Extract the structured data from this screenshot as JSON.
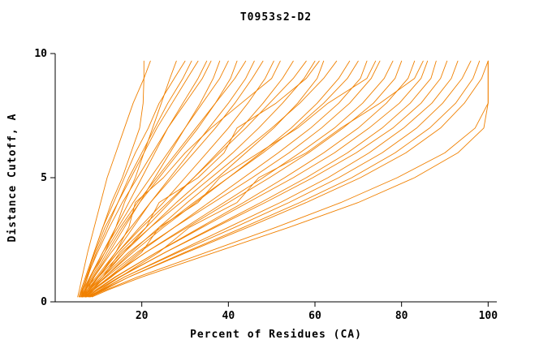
{
  "chart_data": {
    "type": "line",
    "title": "T0953s2-D2",
    "xlabel": "Percent of Residues (CA)",
    "ylabel": "Distance Cutoff, A",
    "xlim": [
      0,
      102
    ],
    "ylim": [
      0,
      10
    ],
    "x_ticks": [
      20,
      40,
      60,
      80,
      100
    ],
    "y_ticks": [
      0,
      5,
      10
    ],
    "grid": false,
    "legend": "none",
    "line_color": "#f08000",
    "axis_color": "#000000",
    "y_levels": [
      0.2,
      0.5,
      1,
      2,
      3,
      4,
      5,
      6,
      7,
      8,
      9,
      9.7
    ],
    "series": [
      {
        "x": [
          6.0,
          6.5,
          7.5,
          9.0,
          11.0,
          13.0,
          15.5,
          17.5,
          19.5,
          20.3,
          20.5,
          20.5
        ]
      },
      {
        "x": [
          5.2,
          5.6,
          6.2,
          7.5,
          9.0,
          10.5,
          12.0,
          14.0,
          16.0,
          18.0,
          20.5,
          22.0
        ]
      },
      {
        "x": [
          6.0,
          7.0,
          8.5,
          11.5,
          14.0,
          16.0,
          18.5,
          20.5,
          22.5,
          24.5,
          26.5,
          28.0
        ]
      },
      {
        "x": [
          5.5,
          6.0,
          7.0,
          9.0,
          11.0,
          13.5,
          16.0,
          18.5,
          21.5,
          24.0,
          27.5,
          30.0
        ]
      },
      {
        "x": [
          6.0,
          6.5,
          7.5,
          9.5,
          12.0,
          14.5,
          17.0,
          20.0,
          23.0,
          26.0,
          29.5,
          31.5
        ]
      },
      {
        "x": [
          5.8,
          6.3,
          7.2,
          9.2,
          11.5,
          14.5,
          17.5,
          20.5,
          23.5,
          27.0,
          30.5,
          33.0
        ]
      },
      {
        "x": [
          6.2,
          7.0,
          8.2,
          11.0,
          14.0,
          17.0,
          20.0,
          23.0,
          26.0,
          29.5,
          33.0,
          35.0
        ]
      },
      {
        "x": [
          5.5,
          6.2,
          7.3,
          9.8,
          12.5,
          15.5,
          19.0,
          22.5,
          26.0,
          30.0,
          34.0,
          36.0
        ]
      },
      {
        "x": [
          6.5,
          7.5,
          9.0,
          12.5,
          16.0,
          19.5,
          23.0,
          26.5,
          30.0,
          33.5,
          36.5,
          38.0
        ]
      },
      {
        "x": [
          6.0,
          6.8,
          8.0,
          11.0,
          14.5,
          18.0,
          22.0,
          26.0,
          30.0,
          34.0,
          38.0,
          40.0
        ]
      },
      {
        "x": [
          6.3,
          7.2,
          8.8,
          12.0,
          15.5,
          19.5,
          24.0,
          28.5,
          33.0,
          37.0,
          40.5,
          42.0
        ]
      },
      {
        "x": [
          5.7,
          6.5,
          8.0,
          11.5,
          15.0,
          19.0,
          23.5,
          28.0,
          32.5,
          37.0,
          41.5,
          44.0
        ]
      },
      {
        "x": [
          6.8,
          8.0,
          10.0,
          14.0,
          18.0,
          22.0,
          26.5,
          31.0,
          35.5,
          40.0,
          44.0,
          46.0
        ]
      },
      {
        "x": [
          6.0,
          7.0,
          9.0,
          13.0,
          17.5,
          22.0,
          27.0,
          32.0,
          37.0,
          41.5,
          45.5,
          48.0
        ]
      },
      {
        "x": [
          6.5,
          7.8,
          10.0,
          14.5,
          19.5,
          25.0,
          30.0,
          35.0,
          40.0,
          44.5,
          48.5,
          50.5
        ]
      },
      {
        "x": [
          7.0,
          8.5,
          11.0,
          16.0,
          21.0,
          26.5,
          32.0,
          37.5,
          43.0,
          48.0,
          52.5,
          55.0
        ]
      },
      {
        "x": [
          6.2,
          7.5,
          9.8,
          14.5,
          20.0,
          26.0,
          32.0,
          38.0,
          44.0,
          49.5,
          55.0,
          58.0
        ]
      },
      {
        "x": [
          6.5,
          8.0,
          10.5,
          16.0,
          22.0,
          28.0,
          34.5,
          41.0,
          47.0,
          52.5,
          57.5,
          60.0
        ]
      },
      {
        "x": [
          7.0,
          8.8,
          11.5,
          17.5,
          24.0,
          30.5,
          37.5,
          44.0,
          50.5,
          56.0,
          60.5,
          62.0
        ]
      },
      {
        "x": [
          6.0,
          7.5,
          10.0,
          15.5,
          22.0,
          29.0,
          36.0,
          43.0,
          50.0,
          56.5,
          62.0,
          65.0
        ]
      },
      {
        "x": [
          6.8,
          8.5,
          11.5,
          18.0,
          25.0,
          32.5,
          40.0,
          47.5,
          54.5,
          60.5,
          65.5,
          68.0
        ]
      },
      {
        "x": [
          6.3,
          8.0,
          11.0,
          17.0,
          24.5,
          32.0,
          40.0,
          48.0,
          55.5,
          62.0,
          67.5,
          70.0
        ]
      },
      {
        "x": [
          7.2,
          9.0,
          12.5,
          19.5,
          27.5,
          35.5,
          43.5,
          51.5,
          59.0,
          65.5,
          70.5,
          72.0
        ]
      },
      {
        "x": [
          6.5,
          8.3,
          11.8,
          19.0,
          27.5,
          36.5,
          45.5,
          54.0,
          61.5,
          68.0,
          73.0,
          75.0
        ]
      },
      {
        "x": [
          7.0,
          9.0,
          12.8,
          21.0,
          30.0,
          39.0,
          48.0,
          56.5,
          64.5,
          71.0,
          76.0,
          78.0
        ]
      },
      {
        "x": [
          6.8,
          8.8,
          12.5,
          21.0,
          30.5,
          40.0,
          49.5,
          58.5,
          66.5,
          73.5,
          78.5,
          80.0
        ]
      },
      {
        "x": [
          7.5,
          9.8,
          14.0,
          23.5,
          33.5,
          43.5,
          53.0,
          62.0,
          70.0,
          76.5,
          81.5,
          83.0
        ]
      },
      {
        "x": [
          7.0,
          9.5,
          13.8,
          23.5,
          34.0,
          44.5,
          55.0,
          64.5,
          72.5,
          79.5,
          84.5,
          86.0
        ]
      },
      {
        "x": [
          7.8,
          10.5,
          15.0,
          25.5,
          36.5,
          47.5,
          58.0,
          67.5,
          75.5,
          82.0,
          86.8,
          88.0
        ]
      },
      {
        "x": [
          7.2,
          10.0,
          14.8,
          25.5,
          37.0,
          48.5,
          59.5,
          69.5,
          78.0,
          84.5,
          89.0,
          90.5
        ]
      },
      {
        "x": [
          8.0,
          11.0,
          16.0,
          28.0,
          40.0,
          52.0,
          63.0,
          72.5,
          80.5,
          87.0,
          91.5,
          93.0
        ]
      },
      {
        "x": [
          7.5,
          10.8,
          16.0,
          28.5,
          41.5,
          54.0,
          65.5,
          75.5,
          83.5,
          89.5,
          94.0,
          96.0
        ]
      },
      {
        "x": [
          8.2,
          11.5,
          17.0,
          30.0,
          43.5,
          56.5,
          68.5,
          78.5,
          86.5,
          92.5,
          96.5,
          98.0
        ]
      },
      {
        "x": [
          7.8,
          11.2,
          17.0,
          30.5,
          44.5,
          58.0,
          70.5,
          81.0,
          89.0,
          94.5,
          98.5,
          100.0
        ]
      },
      {
        "x": [
          8.0,
          12.0,
          19.0,
          35.0,
          51.0,
          66.0,
          79.0,
          90.0,
          97.0,
          100.0,
          100.0,
          100.0
        ]
      },
      {
        "x": [
          8.5,
          12.5,
          20.0,
          37.0,
          54.0,
          70.0,
          83.0,
          93.0,
          99.0,
          100.0,
          100.0,
          100.0
        ]
      },
      {
        "x": [
          6.0,
          7.0,
          9.5,
          14.0,
          17.0,
          18.5,
          25.0,
          30.0,
          36.0,
          43.0,
          50.0,
          52.0
        ]
      },
      {
        "x": [
          6.5,
          8.0,
          11.0,
          15.0,
          21.0,
          24.0,
          33.0,
          39.0,
          42.0,
          51.0,
          58.0,
          61.0
        ]
      },
      {
        "x": [
          7.0,
          9.0,
          13.0,
          20.0,
          24.0,
          33.0,
          38.0,
          47.0,
          56.0,
          63.0,
          72.0,
          74.0
        ]
      },
      {
        "x": [
          7.5,
          10.0,
          15.0,
          24.0,
          31.0,
          42.0,
          47.0,
          58.0,
          66.0,
          75.0,
          83.0,
          85.0
        ]
      }
    ]
  }
}
